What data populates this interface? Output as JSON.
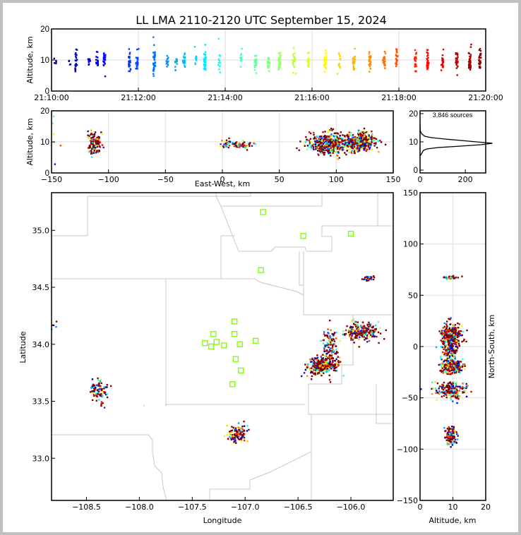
{
  "title": "LL LMA 2110-2120 UTC September 15, 2024",
  "colors": {
    "axis": "#000000",
    "grid": "#e6e6e6",
    "boundary": "#c8c8c8",
    "station": "#7cfc00",
    "colormap": "jet"
  },
  "chart_data": [
    {
      "id": "time-height",
      "type": "scatter",
      "xlabel": "",
      "ylabel": "Altitude, km",
      "x_ticks": [
        "21:10:00",
        "21:12:00",
        "21:14:00",
        "21:16:00",
        "21:18:00",
        "21:20:00"
      ],
      "x_range_seconds": [
        0,
        600
      ],
      "y_ticks": [
        "0",
        "10",
        "20"
      ],
      "ylim": [
        0,
        20
      ],
      "grid": true,
      "color_by": "time",
      "source_bursts": [
        {
          "t": 5,
          "alt_mean": 9.2,
          "spread": 0.5,
          "n": 5
        },
        {
          "t": 25,
          "alt_mean": 8.6,
          "spread": 0.8,
          "n": 4
        },
        {
          "t": 34,
          "alt_mean": 9.8,
          "spread": 1.6,
          "n": 18
        },
        {
          "t": 52,
          "alt_mean": 9.5,
          "spread": 1.0,
          "n": 10
        },
        {
          "t": 63,
          "alt_mean": 9.5,
          "spread": 1.4,
          "n": 14
        },
        {
          "t": 73,
          "alt_mean": 9.8,
          "spread": 1.5,
          "n": 22
        },
        {
          "t": 108,
          "alt_mean": 9.3,
          "spread": 1.8,
          "n": 26
        },
        {
          "t": 118,
          "alt_mean": 10.0,
          "spread": 1.5,
          "n": 20
        },
        {
          "t": 142,
          "alt_mean": 9.3,
          "spread": 2.0,
          "n": 36
        },
        {
          "t": 160,
          "alt_mean": 9.6,
          "spread": 1.2,
          "n": 14
        },
        {
          "t": 172,
          "alt_mean": 9.7,
          "spread": 1.4,
          "n": 14
        },
        {
          "t": 183,
          "alt_mean": 10.0,
          "spread": 1.5,
          "n": 18
        },
        {
          "t": 200,
          "alt_mean": 10.2,
          "spread": 1.0,
          "n": 10
        },
        {
          "t": 212,
          "alt_mean": 10.0,
          "spread": 1.5,
          "n": 30
        },
        {
          "t": 232,
          "alt_mean": 9.5,
          "spread": 1.5,
          "n": 12
        },
        {
          "t": 262,
          "alt_mean": 10.4,
          "spread": 1.3,
          "n": 10
        },
        {
          "t": 282,
          "alt_mean": 9.8,
          "spread": 1.3,
          "n": 22
        },
        {
          "t": 300,
          "alt_mean": 9.5,
          "spread": 1.8,
          "n": 18
        },
        {
          "t": 315,
          "alt_mean": 9.7,
          "spread": 1.6,
          "n": 30
        },
        {
          "t": 335,
          "alt_mean": 9.3,
          "spread": 1.8,
          "n": 20
        },
        {
          "t": 355,
          "alt_mean": 9.8,
          "spread": 1.5,
          "n": 14
        },
        {
          "t": 378,
          "alt_mean": 9.8,
          "spread": 1.5,
          "n": 34
        },
        {
          "t": 398,
          "alt_mean": 9.6,
          "spread": 1.2,
          "n": 12
        },
        {
          "t": 418,
          "alt_mean": 9.6,
          "spread": 1.3,
          "n": 22
        },
        {
          "t": 440,
          "alt_mean": 9.4,
          "spread": 1.6,
          "n": 26
        },
        {
          "t": 460,
          "alt_mean": 9.6,
          "spread": 1.4,
          "n": 22
        },
        {
          "t": 477,
          "alt_mean": 9.8,
          "spread": 1.6,
          "n": 18
        },
        {
          "t": 503,
          "alt_mean": 9.2,
          "spread": 1.8,
          "n": 20
        },
        {
          "t": 520,
          "alt_mean": 9.8,
          "spread": 1.6,
          "n": 24
        },
        {
          "t": 540,
          "alt_mean": 9.6,
          "spread": 1.6,
          "n": 20
        },
        {
          "t": 560,
          "alt_mean": 10.0,
          "spread": 1.4,
          "n": 28
        },
        {
          "t": 578,
          "alt_mean": 9.6,
          "spread": 1.8,
          "n": 34
        },
        {
          "t": 592,
          "alt_mean": 10.2,
          "spread": 1.8,
          "n": 30
        }
      ]
    },
    {
      "id": "east-west-altitude",
      "type": "scatter",
      "xlabel": "East-West, km",
      "ylabel": "Altitude, km",
      "x_ticks": [
        "−150",
        "−100",
        "−50",
        "0",
        "50",
        "100",
        "150"
      ],
      "xlim": [
        -150,
        150
      ],
      "y_ticks": [
        "0",
        "10",
        "20"
      ],
      "ylim": [
        0,
        20
      ],
      "grid": true,
      "clusters": [
        {
          "x": -112,
          "x_spread": 3,
          "alt": 9.5,
          "alt_spread": 2.0,
          "n": 120
        },
        {
          "x": 3,
          "x_spread": 2,
          "alt": 9.5,
          "alt_spread": 0.7,
          "n": 20
        },
        {
          "x": 14,
          "x_spread": 6,
          "alt": 9.0,
          "alt_spread": 0.6,
          "n": 70
        },
        {
          "x": 95,
          "x_spread": 10,
          "alt": 9.5,
          "alt_spread": 1.6,
          "n": 500
        },
        {
          "x": 122,
          "x_spread": 6,
          "alt": 10.0,
          "alt_spread": 1.5,
          "n": 300
        }
      ]
    },
    {
      "id": "altitude-histogram",
      "type": "line",
      "annotation": "3,846 sources",
      "x_ticks": [
        "0",
        "200"
      ],
      "xlim": [
        0,
        290
      ],
      "y_ticks": [
        "0",
        "10",
        "20"
      ],
      "ylim": [
        -1,
        21
      ],
      "peak_count": 320,
      "peak_altitude_km": 9.5,
      "profile": [
        [
          5.0,
          0
        ],
        [
          6.0,
          8
        ],
        [
          7.0,
          15
        ],
        [
          7.5,
          30
        ],
        [
          8.0,
          80
        ],
        [
          8.5,
          180
        ],
        [
          9.0,
          270
        ],
        [
          9.5,
          320
        ],
        [
          10.0,
          250
        ],
        [
          10.5,
          180
        ],
        [
          11.0,
          110
        ],
        [
          11.5,
          50
        ],
        [
          12.0,
          20
        ],
        [
          13.0,
          6
        ],
        [
          14.0,
          1
        ],
        [
          16.0,
          0
        ]
      ]
    },
    {
      "id": "plan-view-map",
      "type": "scatter",
      "xlabel": "Longitude",
      "ylabel": "Latitude",
      "x_ticks": [
        "−108.5",
        "−108.0",
        "−107.5",
        "−107.0",
        "−106.5",
        "−106.0"
      ],
      "xlim": [
        -108.83,
        -105.6
      ],
      "y_ticks": [
        "33.0",
        "33.5",
        "34.0",
        "34.5",
        "35.0"
      ],
      "ylim": [
        32.63,
        35.33
      ],
      "stations": [
        [
          -107.1,
          34.2
        ],
        [
          -107.3,
          34.09
        ],
        [
          -107.1,
          34.09
        ],
        [
          -107.38,
          34.01
        ],
        [
          -107.32,
          33.98
        ],
        [
          -107.27,
          34.02
        ],
        [
          -107.2,
          33.99
        ],
        [
          -107.05,
          34.0
        ],
        [
          -106.9,
          34.03
        ],
        [
          -107.09,
          33.87
        ],
        [
          -107.04,
          33.77
        ],
        [
          -107.12,
          33.65
        ],
        [
          -106.83,
          35.16
        ],
        [
          -106.45,
          34.95
        ],
        [
          -106.0,
          34.97
        ],
        [
          -106.85,
          34.65
        ]
      ],
      "clusters": [
        {
          "lon": -108.39,
          "lat": 33.59,
          "r_lon": 0.05,
          "r_lat": 0.05,
          "n": 90
        },
        {
          "lon": -107.07,
          "lat": 33.21,
          "r_lon": 0.05,
          "r_lat": 0.04,
          "n": 120
        },
        {
          "lon": -106.27,
          "lat": 33.81,
          "r_lon": 0.07,
          "r_lat": 0.04,
          "n": 250
        },
        {
          "lon": -106.2,
          "lat": 33.95,
          "r_lon": 0.04,
          "r_lat": 0.1,
          "n": 140
        },
        {
          "lon": -105.9,
          "lat": 34.11,
          "r_lon": 0.08,
          "r_lat": 0.04,
          "n": 220
        },
        {
          "lon": -105.84,
          "lat": 34.58,
          "r_lon": 0.03,
          "r_lat": 0.01,
          "n": 30
        },
        {
          "lon": -108.79,
          "lat": 34.16,
          "r_lon": 0.02,
          "r_lat": 0.03,
          "n": 5
        }
      ]
    },
    {
      "id": "altitude-north-south",
      "type": "scatter",
      "xlabel": "Altitude, km",
      "ylabel": "North-South, km",
      "x_ticks": [
        "0",
        "10",
        "20"
      ],
      "xlim": [
        0,
        20
      ],
      "y_ticks": [
        "−150",
        "−100",
        "−50",
        "0",
        "50",
        "100",
        "150"
      ],
      "ylim": [
        -150,
        150
      ],
      "grid": true,
      "clusters": [
        {
          "ns": 67,
          "ns_spread": 1,
          "alt": 9.5,
          "alt_spread": 1.2,
          "n": 30
        },
        {
          "ns": 10,
          "ns_spread": 6,
          "alt": 9.5,
          "alt_spread": 1.5,
          "n": 350
        },
        {
          "ns": -5,
          "ns_spread": 5,
          "alt": 9.0,
          "alt_spread": 1.2,
          "n": 120
        },
        {
          "ns": -20,
          "ns_spread": 3,
          "alt": 9.5,
          "alt_spread": 1.6,
          "n": 300
        },
        {
          "ns": -43,
          "ns_spread": 4,
          "alt": 9.5,
          "alt_spread": 2.5,
          "n": 180
        },
        {
          "ns": -87,
          "ns_spread": 4,
          "alt": 9.3,
          "alt_spread": 0.8,
          "n": 150
        }
      ]
    }
  ]
}
